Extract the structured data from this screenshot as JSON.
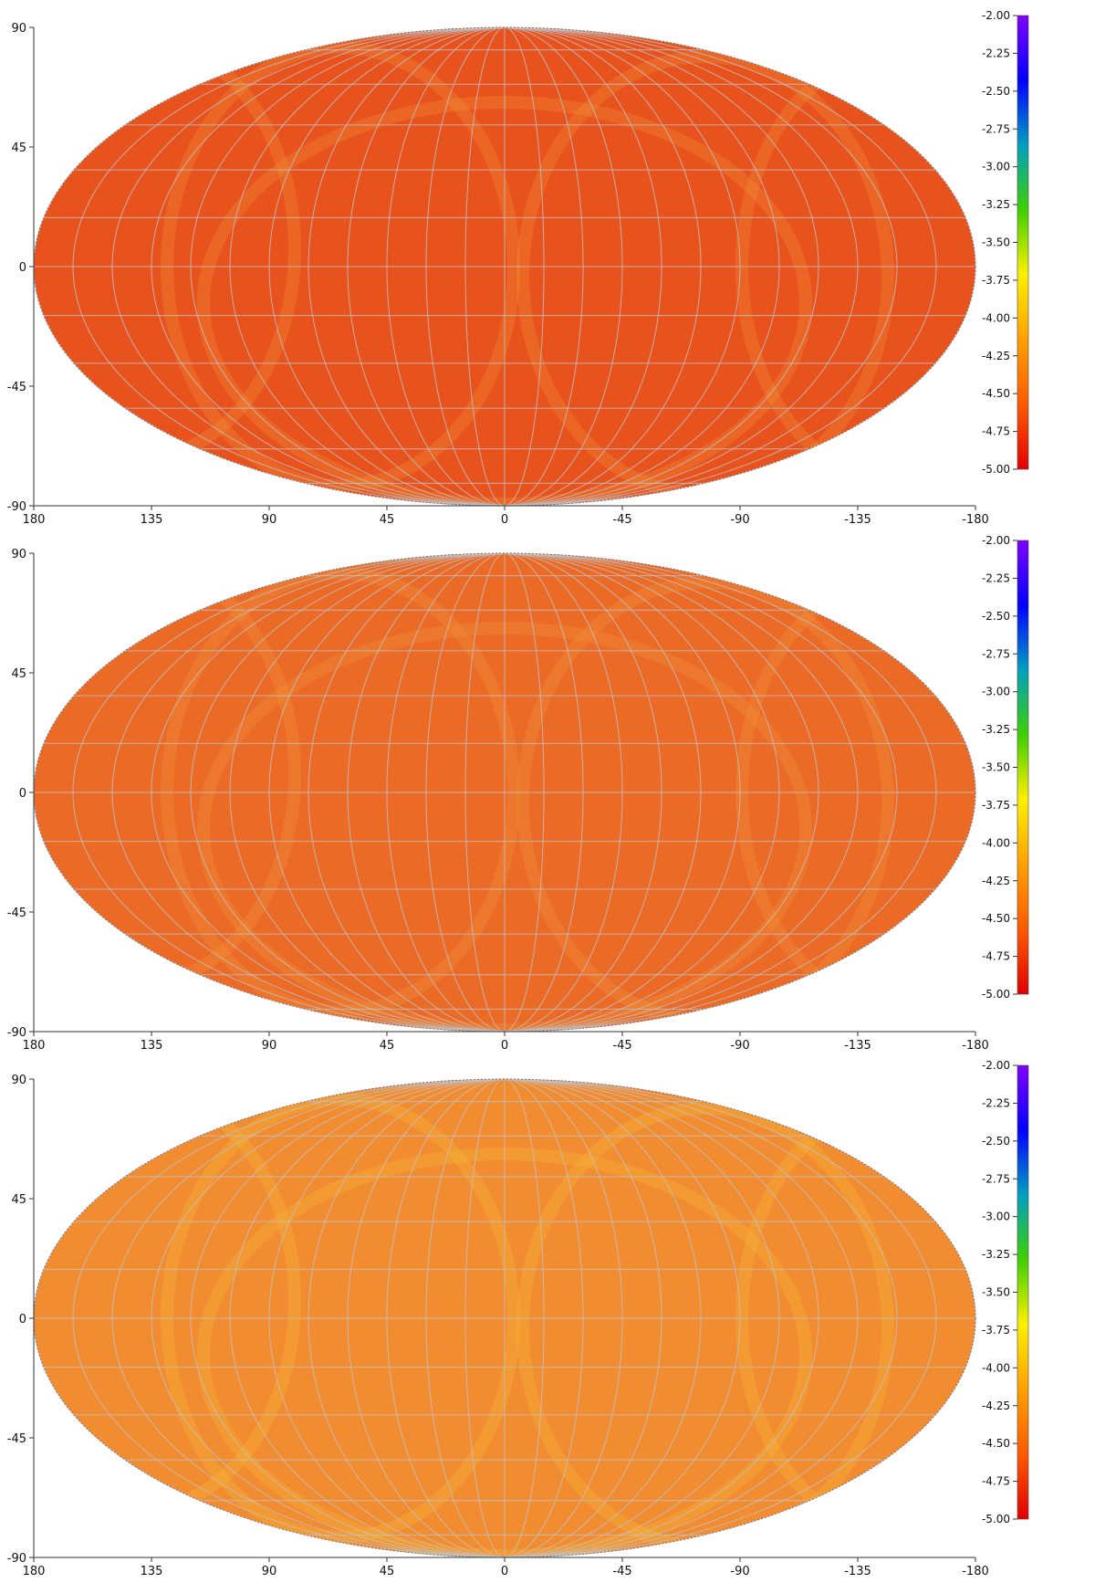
{
  "chart_data": [
    {
      "type": "heatmap",
      "projection": "mollweide",
      "xlabel": "",
      "ylabel": "",
      "x_ticks": [
        "180",
        "135",
        "90",
        "45",
        "0",
        "-45",
        "-90",
        "-135",
        "-180"
      ],
      "y_ticks": [
        "90",
        "45",
        "0",
        "-45",
        "-90"
      ],
      "xlim": [
        180,
        -180
      ],
      "ylim": [
        -90,
        90
      ],
      "grid": true,
      "colorbar": {
        "placement": "right",
        "range": [
          -5.0,
          -2.0
        ],
        "ticks": [
          "-2.00",
          "-2.25",
          "-2.50",
          "-2.75",
          "-3.00",
          "-3.25",
          "-3.50",
          "-3.75",
          "-4.00",
          "-4.25",
          "-4.50",
          "-4.75",
          "-5.00"
        ],
        "colors": [
          "#e00000",
          "#ff5a00",
          "#ffa000",
          "#fff000",
          "#3fd000",
          "#00a0c0",
          "#0000ff",
          "#8000ff"
        ]
      },
      "typical_level": -4.7,
      "colors": {
        "map_fill": "#e8531d"
      }
    },
    {
      "type": "heatmap",
      "projection": "mollweide",
      "xlabel": "",
      "ylabel": "",
      "x_ticks": [
        "180",
        "135",
        "90",
        "45",
        "0",
        "-45",
        "-90",
        "-135",
        "-180"
      ],
      "y_ticks": [
        "90",
        "45",
        "0",
        "-45",
        "-90"
      ],
      "xlim": [
        180,
        -180
      ],
      "ylim": [
        -90,
        90
      ],
      "grid": true,
      "colorbar": {
        "placement": "right",
        "range": [
          -5.0,
          -2.0
        ],
        "ticks": [
          "-2.00",
          "-2.25",
          "-2.50",
          "-2.75",
          "-3.00",
          "-3.25",
          "-3.50",
          "-3.75",
          "-4.00",
          "-4.25",
          "-4.50",
          "-4.75",
          "-5.00"
        ],
        "colors": [
          "#e00000",
          "#ff5a00",
          "#ffa000",
          "#fff000",
          "#3fd000",
          "#00a0c0",
          "#0000ff",
          "#8000ff"
        ]
      },
      "typical_level": -4.6,
      "colors": {
        "map_fill": "#ea6a26"
      }
    },
    {
      "type": "heatmap",
      "projection": "mollweide",
      "xlabel": "",
      "ylabel": "",
      "x_ticks": [
        "180",
        "135",
        "90",
        "45",
        "0",
        "-45",
        "-90",
        "-135",
        "-180"
      ],
      "y_ticks": [
        "90",
        "45",
        "0",
        "-45",
        "-90"
      ],
      "xlim": [
        180,
        -180
      ],
      "ylim": [
        -90,
        90
      ],
      "grid": true,
      "colorbar": {
        "placement": "right",
        "range": [
          -5.0,
          -2.0
        ],
        "ticks": [
          "-2.00",
          "-2.25",
          "-2.50",
          "-2.75",
          "-3.00",
          "-3.25",
          "-3.50",
          "-3.75",
          "-4.00",
          "-4.25",
          "-4.50",
          "-4.75",
          "-5.00"
        ],
        "colors": [
          "#e00000",
          "#ff5a00",
          "#ffa000",
          "#fff000",
          "#3fd000",
          "#00a0c0",
          "#0000ff",
          "#8000ff"
        ]
      },
      "typical_level": -4.45,
      "colors": {
        "map_fill": "#f28c30"
      }
    }
  ]
}
